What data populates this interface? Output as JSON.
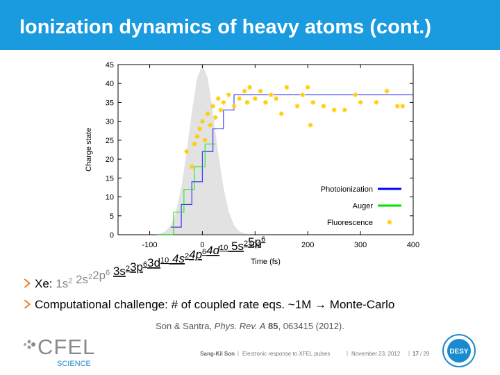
{
  "header": {
    "title": "Ionization dynamics of heavy atoms (cont.)"
  },
  "chart_data": {
    "type": "scatter",
    "xlabel": "Time (fs)",
    "ylabel": "Charge state",
    "xlim": [
      -160,
      400
    ],
    "ylim": [
      0,
      45
    ],
    "xticks": [
      -100,
      0,
      100,
      200,
      300,
      400
    ],
    "yticks": [
      0,
      5,
      10,
      15,
      20,
      25,
      30,
      35,
      40,
      45
    ],
    "pulse": {
      "color": "#e2e2e2",
      "x": [
        -90,
        -80,
        -70,
        -60,
        -50,
        -40,
        -30,
        -20,
        -10,
        0,
        10,
        20,
        30,
        40,
        50,
        60,
        70,
        80,
        90
      ],
      "values": [
        0.07,
        0.3,
        0.9,
        2.5,
        6.1,
        12.5,
        21.7,
        32.4,
        41.5,
        45,
        41.5,
        32.4,
        21.7,
        12.5,
        6.1,
        2.5,
        0.9,
        0.3,
        0.07
      ]
    },
    "legend": "lower right",
    "series": [
      {
        "name": "Photoionization",
        "color": "#0000ff",
        "x": [
          -60,
          -40,
          -40,
          -20,
          -20,
          0,
          0,
          20,
          20,
          40,
          40,
          60,
          60,
          400
        ],
        "values": [
          2,
          2,
          8,
          8,
          14,
          14,
          22,
          22,
          28,
          28,
          33,
          33,
          37,
          37
        ]
      },
      {
        "name": "Auger",
        "color": "#00e000",
        "x": [
          -85,
          -55,
          -55,
          -35,
          -35,
          -15,
          -15,
          5,
          5,
          25
        ],
        "values": [
          0,
          0,
          6,
          6,
          12,
          12,
          18,
          18,
          24,
          24
        ]
      },
      {
        "name": "Fluorescence",
        "color": "#ffcc00",
        "x": [
          -30,
          -20,
          -15,
          -10,
          -5,
          0,
          5,
          10,
          15,
          20,
          25,
          30,
          35,
          40,
          50,
          60,
          70,
          80,
          85,
          90,
          100,
          110,
          120,
          130,
          140,
          150,
          160,
          180,
          190,
          200,
          205,
          210,
          230,
          250,
          270,
          290,
          300,
          330,
          350,
          370,
          380
        ],
        "values": [
          22,
          18,
          24,
          26,
          28,
          30,
          25,
          32,
          29,
          34,
          31,
          36,
          33,
          35,
          37,
          34,
          36,
          38,
          35,
          39,
          36,
          38,
          35,
          37,
          36,
          32,
          39,
          34,
          37,
          39,
          29,
          35,
          34,
          33,
          33,
          37,
          35,
          35,
          38,
          34,
          34
        ]
      }
    ]
  },
  "electron_config": {
    "label": "Xe:",
    "core": [
      [
        [
          "1s",
          "2"
        ]
      ],
      [
        [
          "2s",
          "2"
        ],
        [
          "2p",
          "6"
        ]
      ]
    ],
    "valence": [
      [
        [
          "3s",
          "2"
        ],
        [
          "3p",
          "6"
        ],
        [
          "3d",
          "10"
        ]
      ],
      [
        [
          "4s",
          "2"
        ],
        [
          "4p",
          "6"
        ],
        [
          "4d",
          "10"
        ]
      ],
      [
        [
          "5s",
          "2"
        ],
        [
          "5p",
          "6"
        ]
      ]
    ]
  },
  "bullets": [
    "Computational challenge: # of coupled rate eqs. ~1M → Monte-Carlo"
  ],
  "reference": {
    "authors": "Son & Santra, ",
    "journal": "Phys. Rev. A",
    "volume": "85",
    "rest": ", 063415 (2012)."
  },
  "footer": {
    "author": "Sang-Kil Son",
    "talk": "Electronic response to XFEL pulses",
    "date": "November 23, 2012",
    "page": "17",
    "total": "/ 29"
  },
  "logos": {
    "left": "CFEL",
    "left_sub": "SCIENCE",
    "right": "DESY"
  }
}
